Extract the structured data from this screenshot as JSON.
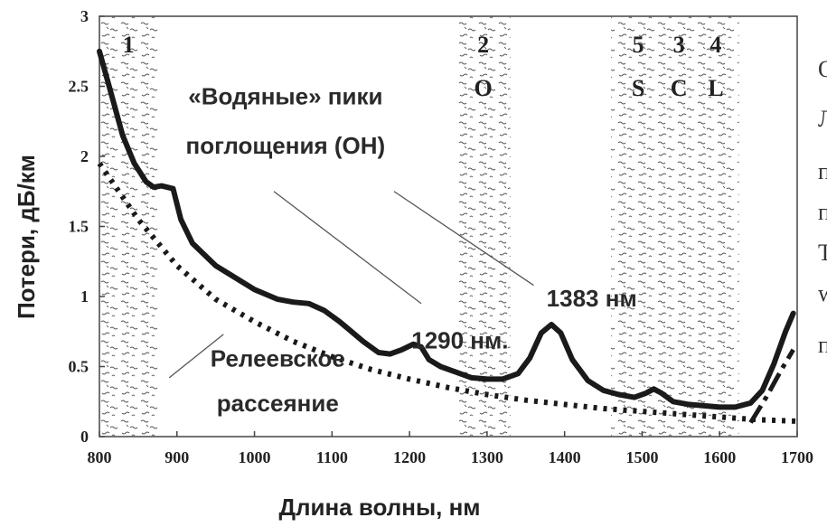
{
  "chart_data": {
    "type": "line",
    "title": "",
    "xlabel": "Длина волны, нм",
    "ylabel": "Потери, дБ/км",
    "xlim": [
      800,
      1700
    ],
    "ylim": [
      0,
      3
    ],
    "x_ticks": [
      800,
      900,
      1000,
      1100,
      1200,
      1300,
      1400,
      1500,
      1600,
      1700
    ],
    "y_ticks": [
      "0",
      "0.5",
      "1",
      "1.5",
      "2",
      "2.5",
      "3"
    ],
    "grid": false,
    "bands": [
      {
        "number": "1",
        "letter": "",
        "x_start": 800,
        "x_end": 875
      },
      {
        "number": "2",
        "letter": "O",
        "x_start": 1260,
        "x_end": 1330
      },
      {
        "number": "5",
        "letter": "S",
        "x_start": 1460,
        "x_end": 1530
      },
      {
        "number": "3",
        "letter": "C",
        "x_start": 1530,
        "x_end": 1565
      },
      {
        "number": "4",
        "letter": "L",
        "x_start": 1565,
        "x_end": 1625
      }
    ],
    "series": [
      {
        "name": "",
        "style": "solid",
        "x": [
          800,
          815,
          830,
          845,
          860,
          870,
          880,
          895,
          905,
          920,
          950,
          1000,
          1030,
          1050,
          1070,
          1090,
          1110,
          1140,
          1160,
          1175,
          1190,
          1205,
          1215,
          1225,
          1240,
          1260,
          1280,
          1300,
          1320,
          1340,
          1355,
          1370,
          1383,
          1395,
          1410,
          1430,
          1450,
          1470,
          1490,
          1505,
          1515,
          1525,
          1540,
          1560,
          1580,
          1600,
          1620,
          1640,
          1655,
          1670,
          1685,
          1695
        ],
        "values": [
          2.75,
          2.45,
          2.15,
          1.95,
          1.82,
          1.78,
          1.79,
          1.77,
          1.55,
          1.38,
          1.22,
          1.05,
          0.98,
          0.96,
          0.95,
          0.9,
          0.82,
          0.68,
          0.6,
          0.59,
          0.62,
          0.66,
          0.64,
          0.55,
          0.5,
          0.46,
          0.42,
          0.41,
          0.41,
          0.45,
          0.56,
          0.74,
          0.8,
          0.74,
          0.55,
          0.4,
          0.33,
          0.3,
          0.28,
          0.31,
          0.34,
          0.31,
          0.25,
          0.23,
          0.22,
          0.21,
          0.21,
          0.24,
          0.33,
          0.52,
          0.75,
          0.88
        ]
      },
      {
        "name": "",
        "style": "dotted",
        "x": [
          800,
          850,
          900,
          950,
          1000,
          1050,
          1100,
          1150,
          1200,
          1250,
          1300,
          1350,
          1400,
          1450,
          1500,
          1550,
          1600,
          1650,
          1700
        ],
        "values": [
          1.95,
          1.55,
          1.22,
          0.98,
          0.82,
          0.68,
          0.57,
          0.48,
          0.41,
          0.35,
          0.3,
          0.26,
          0.23,
          0.2,
          0.18,
          0.16,
          0.14,
          0.12,
          0.11
        ]
      },
      {
        "name": "",
        "style": "dashdot",
        "x": [
          1640,
          1660,
          1680,
          1695
        ],
        "values": [
          0.1,
          0.28,
          0.48,
          0.62
        ]
      }
    ],
    "annotations": [
      {
        "text": "«Водяные» пики",
        "x": 1040,
        "y": 2.37
      },
      {
        "text": "поглощения (ОН)",
        "x": 1040,
        "y": 2.02
      },
      {
        "text": "1290 нм.",
        "x": 1265,
        "y": 0.63
      },
      {
        "text": "1383 нм",
        "x": 1435,
        "y": 0.93
      },
      {
        "text": "Релеевское",
        "x": 1030,
        "y": 0.5
      },
      {
        "text": "рассеяние",
        "x": 1030,
        "y": 0.18
      }
    ],
    "pointer_lines": [
      {
        "from": [
          1025,
          1.75
        ],
        "to": [
          1215,
          0.95
        ]
      },
      {
        "from": [
          1180,
          1.75
        ],
        "to": [
          1360,
          1.08
        ]
      },
      {
        "from": [
          890,
          0.42
        ],
        "to": [
          960,
          0.73
        ]
      }
    ]
  },
  "side_text": [
    "О",
    "Л",
    "п",
    "п",
    "Т",
    "w",
    "п"
  ]
}
